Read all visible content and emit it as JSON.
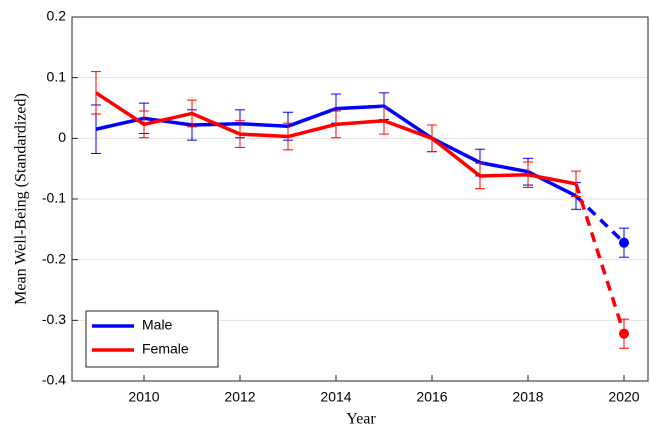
{
  "chart_data": {
    "type": "line",
    "x_label": "Year",
    "y_label": "Mean Well-Being (Standardized)",
    "x": [
      2009,
      2010,
      2011,
      2012,
      2013,
      2014,
      2015,
      2016,
      2017,
      2018,
      2019,
      2020
    ],
    "series": [
      {
        "name": "Male",
        "color": "#0000ff",
        "values": [
          0.015,
          0.033,
          0.022,
          0.024,
          0.02,
          0.049,
          0.053,
          0.0,
          -0.04,
          -0.055,
          -0.095,
          -0.172
        ],
        "errors": [
          0.04,
          0.025,
          0.025,
          0.023,
          0.023,
          0.024,
          0.022,
          0.022,
          0.022,
          0.022,
          0.022,
          0.024
        ]
      },
      {
        "name": "Female",
        "color": "#ff0000",
        "values": [
          0.075,
          0.023,
          0.041,
          0.007,
          0.003,
          0.023,
          0.029,
          0.0,
          -0.062,
          -0.06,
          -0.075,
          -0.322
        ],
        "errors": [
          0.035,
          0.022,
          0.022,
          0.022,
          0.022,
          0.022,
          0.022,
          0.022,
          0.021,
          0.021,
          0.021,
          0.024
        ]
      }
    ],
    "dashed_last_segment": true,
    "xlim": [
      2008.5,
      2020.5
    ],
    "xticks": [
      2010,
      2012,
      2014,
      2016,
      2018,
      2020
    ],
    "ylim": [
      -0.4,
      0.2
    ],
    "yticks": [
      -0.4,
      -0.3,
      -0.2,
      -0.1,
      0,
      0.1,
      0.2
    ],
    "grid": true,
    "legend": "lower left"
  }
}
